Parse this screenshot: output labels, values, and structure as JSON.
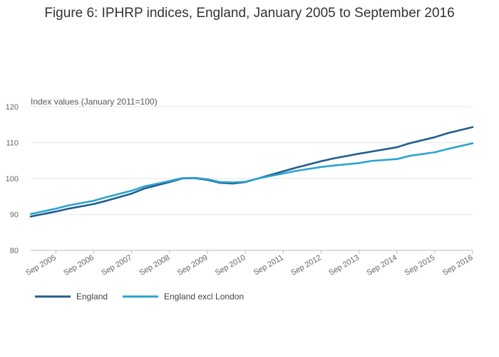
{
  "chart_data": {
    "type": "line",
    "title": "Figure 6: IPHRP indices, England, January 2005 to September 2016",
    "ylabel": "Index values (January 2011=100)",
    "xlabel": "",
    "ylim": [
      80,
      120
    ],
    "yticks": [
      80,
      90,
      100,
      110,
      120
    ],
    "xlim": [
      "2005-01",
      "2016-09"
    ],
    "xtick_labels": [
      "Sep 2005",
      "Sep 2006",
      "Sep 2007",
      "Sep 2008",
      "Sep 2009",
      "Sep 2010",
      "Sep 2011",
      "Sep 2012",
      "Sep 2013",
      "Sep 2014",
      "Sep 2015",
      "Sep 2016"
    ],
    "xtick_dates": [
      "2005-09",
      "2006-09",
      "2007-09",
      "2008-09",
      "2009-09",
      "2010-09",
      "2011-09",
      "2012-09",
      "2013-09",
      "2014-09",
      "2015-09",
      "2016-09"
    ],
    "grid": true,
    "legend_position": "bottom-left",
    "series": [
      {
        "name": "England",
        "color": "#1f5c8f",
        "points": [
          [
            "2005-01",
            89.4
          ],
          [
            "2005-09",
            90.8
          ],
          [
            "2006-01",
            91.6
          ],
          [
            "2006-09",
            92.9
          ],
          [
            "2007-01",
            93.8
          ],
          [
            "2007-09",
            95.8
          ],
          [
            "2008-01",
            97.2
          ],
          [
            "2008-09",
            99.0
          ],
          [
            "2009-01",
            100.0
          ],
          [
            "2009-05",
            100.1
          ],
          [
            "2009-09",
            99.6
          ],
          [
            "2010-01",
            98.8
          ],
          [
            "2010-05",
            98.6
          ],
          [
            "2010-09",
            99.0
          ],
          [
            "2011-01",
            100.0
          ],
          [
            "2011-09",
            102.0
          ],
          [
            "2012-01",
            103.0
          ],
          [
            "2012-09",
            104.8
          ],
          [
            "2013-01",
            105.6
          ],
          [
            "2013-09",
            106.9
          ],
          [
            "2014-01",
            107.5
          ],
          [
            "2014-09",
            108.7
          ],
          [
            "2015-01",
            109.8
          ],
          [
            "2015-09",
            111.5
          ],
          [
            "2016-01",
            112.6
          ],
          [
            "2016-09",
            114.3
          ]
        ]
      },
      {
        "name": "England excl London",
        "color": "#2aa3cf",
        "points": [
          [
            "2005-01",
            90.1
          ],
          [
            "2005-09",
            91.6
          ],
          [
            "2006-01",
            92.5
          ],
          [
            "2006-09",
            93.8
          ],
          [
            "2007-01",
            94.8
          ],
          [
            "2007-09",
            96.6
          ],
          [
            "2008-01",
            97.8
          ],
          [
            "2008-09",
            99.3
          ],
          [
            "2009-01",
            100.1
          ],
          [
            "2009-05",
            100.2
          ],
          [
            "2009-09",
            99.8
          ],
          [
            "2010-01",
            99.0
          ],
          [
            "2010-05",
            98.9
          ],
          [
            "2010-09",
            99.1
          ],
          [
            "2011-01",
            100.0
          ],
          [
            "2011-09",
            101.4
          ],
          [
            "2012-01",
            102.1
          ],
          [
            "2012-09",
            103.2
          ],
          [
            "2013-01",
            103.6
          ],
          [
            "2013-09",
            104.3
          ],
          [
            "2014-01",
            104.9
          ],
          [
            "2014-09",
            105.4
          ],
          [
            "2015-01",
            106.3
          ],
          [
            "2015-09",
            107.3
          ],
          [
            "2016-01",
            108.2
          ],
          [
            "2016-09",
            109.8
          ]
        ]
      }
    ]
  }
}
